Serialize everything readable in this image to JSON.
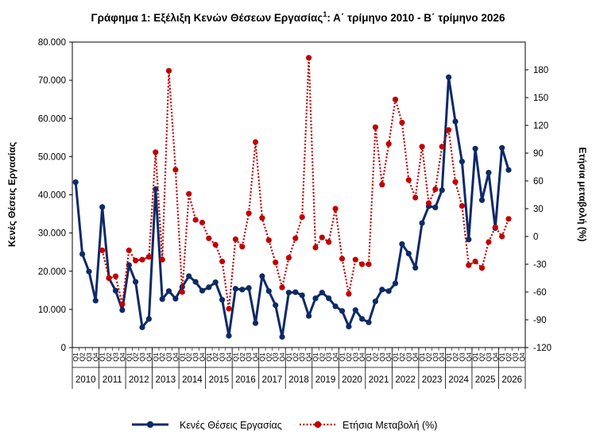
{
  "chart_data": {
    "type": "line",
    "title": "Γράφημα 1: Εξέλιξη Κενών Θέσεων Εργασίας",
    "title_sup": "1",
    "title_suffix": ": Α΄ τρίμηνο 2010 - Β΄ τρίμηνο 2026",
    "ylabel_left": "Κενές Θέσεις Εργασίας",
    "ylabel_right": "Ετήσια μεταβολή (%)",
    "ylim_left": [
      0,
      80000
    ],
    "yticks_left": [
      0,
      10000,
      20000,
      30000,
      40000,
      50000,
      60000,
      70000,
      80000
    ],
    "ytick_labels_left": [
      "0",
      "10.000",
      "20.000",
      "30.000",
      "40.000",
      "50.000",
      "60.000",
      "70.000",
      "80.000"
    ],
    "ylim_right": [
      -120,
      210
    ],
    "yticks_right": [
      -120,
      -90,
      -60,
      -30,
      0,
      30,
      60,
      90,
      120,
      150,
      180
    ],
    "ytick_labels_right": [
      "-120",
      "-90",
      "-60",
      "-30",
      "0",
      "30",
      "60",
      "90",
      "120",
      "150",
      "180"
    ],
    "quarter_labels": [
      "Q1",
      "Q2",
      "Q3",
      "Q4"
    ],
    "years": [
      "2010",
      "2011",
      "2012",
      "2013",
      "2014",
      "2015",
      "2016",
      "2017",
      "2018",
      "2019",
      "2020",
      "2021",
      "2022",
      "2023",
      "2024",
      "2025",
      "2026"
    ],
    "series": [
      {
        "name": "Κενές Θέσεις Εργασίας",
        "axis": "left",
        "color": "#0d2a66",
        "style": "solid",
        "values": [
          43300,
          24500,
          19900,
          12300,
          36800,
          18200,
          14900,
          9800,
          21600,
          17200,
          5300,
          7500,
          41500,
          12700,
          14800,
          12800,
          15900,
          18700,
          17200,
          14900,
          15800,
          17100,
          12500,
          3100,
          15400,
          15200,
          15600,
          6400,
          18700,
          14800,
          11100,
          2800,
          14400,
          14500,
          13700,
          8300,
          12900,
          14400,
          12900,
          10800,
          9600,
          5500,
          9800,
          7500,
          6600,
          12100,
          15200,
          14800,
          16800,
          27100,
          24600,
          20900,
          32600,
          37000,
          36700,
          41200,
          70800,
          59200,
          48700,
          28300,
          52100,
          38600,
          45800,
          31300,
          52300,
          46500
        ]
      },
      {
        "name": "Ετήσια Μεταβολή (%)",
        "axis": "right",
        "color": "#c00000",
        "style": "dotted",
        "values": [
          null,
          null,
          null,
          null,
          -15,
          -45,
          -43,
          -73,
          -15,
          -26,
          -25,
          -22,
          91,
          -25,
          179,
          72,
          -60,
          46,
          18,
          15,
          -2,
          -9,
          -27,
          -78,
          -3,
          -11,
          25,
          102,
          20,
          -4,
          -28,
          -55,
          -23,
          -2,
          21,
          193,
          -12,
          -1,
          -6,
          30,
          -24,
          -62,
          -25,
          -30,
          -30,
          118,
          56,
          100,
          148,
          123,
          61,
          42,
          97,
          36,
          51,
          97,
          115,
          59,
          33,
          -31,
          -27,
          -34,
          -6,
          10,
          0,
          19
        ]
      }
    ],
    "legend": [
      "Κενές Θέσεις Εργασίας",
      "Ετήσια Μεταβολή (%)"
    ],
    "legend_position": "bottom",
    "grid": false
  }
}
